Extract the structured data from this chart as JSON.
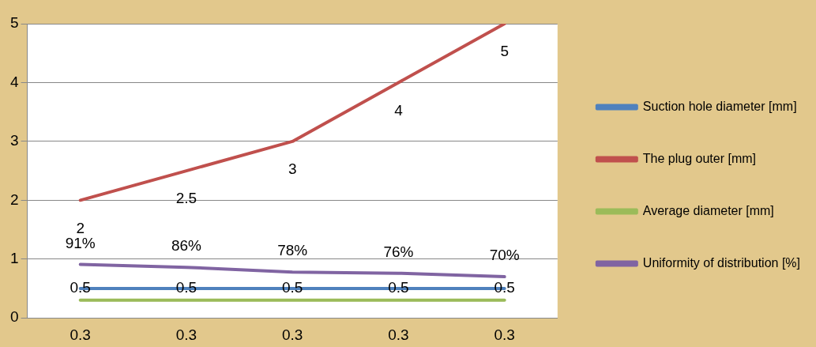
{
  "chart_data": {
    "type": "line",
    "categories": [
      "0.3",
      "0.3",
      "0.3",
      "0.3",
      "0.3"
    ],
    "series": [
      {
        "name": "Suction hole diameter [mm]",
        "color": "#4f81bd",
        "values": [
          0.5,
          0.5,
          0.5,
          0.5,
          0.5
        ],
        "value_labels": [
          "0.5",
          "0.5",
          "0.5",
          "0.5",
          "0.5"
        ]
      },
      {
        "name": "The plug outer [mm]",
        "color": "#c0504d",
        "values": [
          2,
          2.5,
          3,
          4,
          5
        ],
        "value_labels": [
          "2",
          "2.5",
          "3",
          "4",
          "5"
        ]
      },
      {
        "name": "Average diameter [mm]",
        "color": "#9bbb59",
        "values": [
          0.3,
          0.3,
          0.3,
          0.3,
          0.3
        ]
      },
      {
        "name": "Uniformity of distribution [%]",
        "color": "#8064a2",
        "values": [
          0.91,
          0.86,
          0.78,
          0.76,
          0.7
        ],
        "value_labels": [
          "91%",
          "86%",
          "78%",
          "76%",
          "70%"
        ]
      }
    ],
    "ylim": [
      0,
      5
    ],
    "yticks": [
      0,
      1,
      2,
      3,
      4,
      5
    ],
    "grid": "y",
    "legend": "right",
    "marker": "none",
    "line_style": "solid"
  }
}
